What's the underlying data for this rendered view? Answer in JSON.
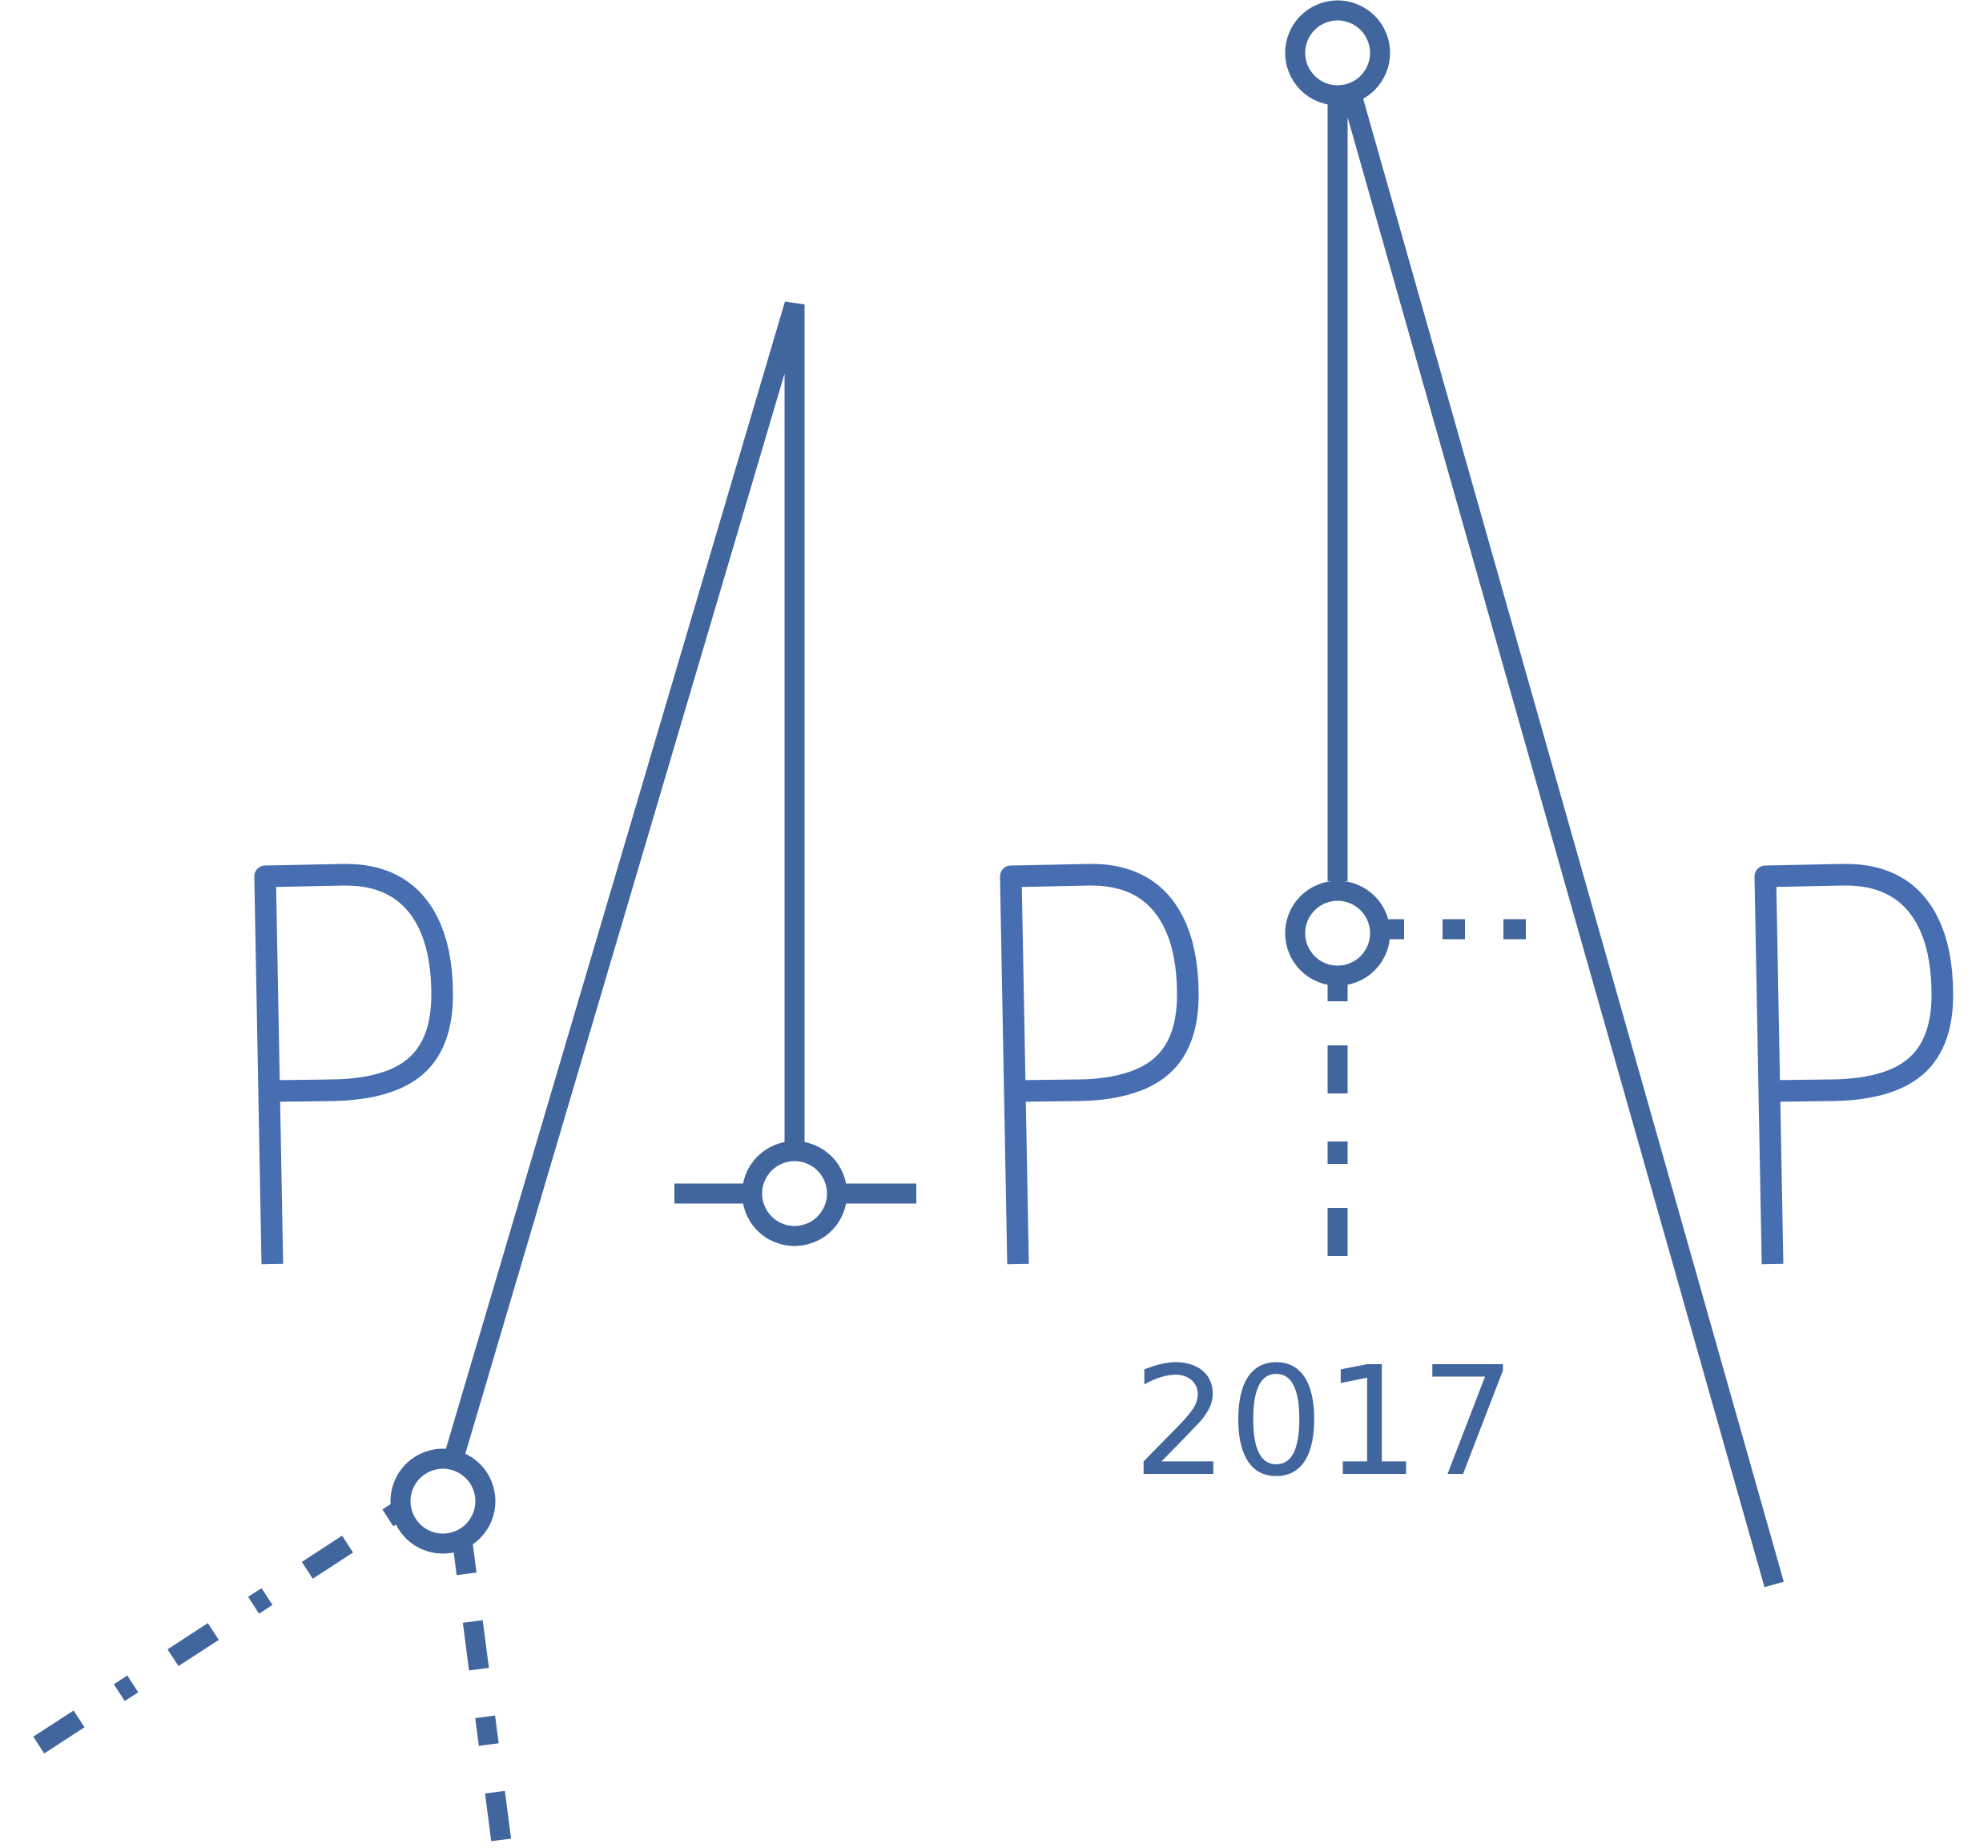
{
  "logo": {
    "letters": [
      "P",
      "P",
      "P"
    ],
    "year": "2017",
    "colors": {
      "frame": "#41669d",
      "letter": "#466eb1",
      "background": "#ffffff"
    }
  }
}
